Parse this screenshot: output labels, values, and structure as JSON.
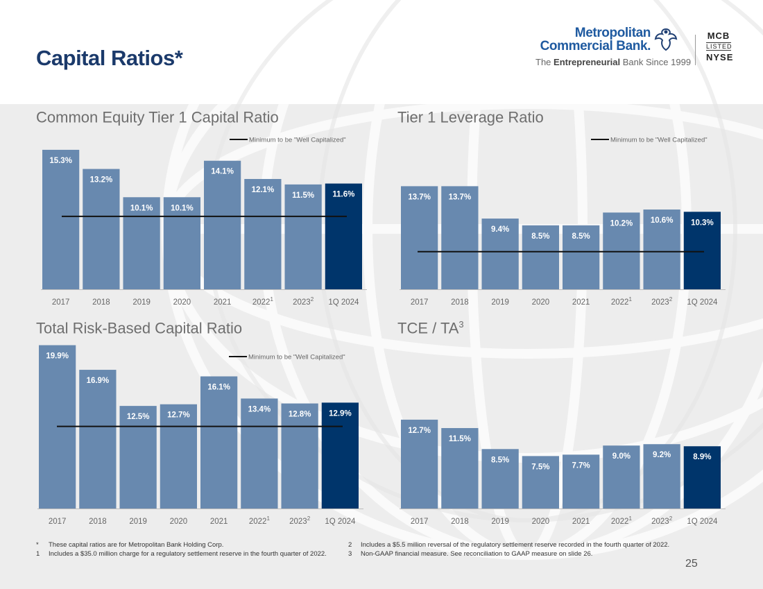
{
  "page": {
    "title": "Capital Ratios*",
    "page_number": "25"
  },
  "logo": {
    "line1": "Metropolitan",
    "line2": "Commercial Bank.",
    "tagline_pre": "The",
    "tagline_bold": "Entrepreneurial",
    "tagline_post": "Bank Since 1999",
    "ticker_code": "MCB",
    "ticker_listed": "LISTED",
    "ticker_exchange": "NYSE"
  },
  "colors": {
    "bar": "#6889af",
    "bar_highlight": "#00356b",
    "title": "#1b3a6b",
    "min_line": "#111111"
  },
  "chart_data": [
    {
      "type": "bar",
      "title": "Common Equity Tier 1 Capital Ratio",
      "title_sup": "",
      "categories": [
        "2017",
        "2018",
        "2019",
        "2020",
        "2021",
        "2022",
        "2023",
        "1Q 2024"
      ],
      "category_sups": [
        "",
        "",
        "",
        "",
        "",
        "1",
        "2",
        ""
      ],
      "values": [
        15.3,
        13.2,
        10.1,
        10.1,
        14.1,
        12.1,
        11.5,
        11.6
      ],
      "labels": [
        "15.3%",
        "13.2%",
        "10.1%",
        "10.1%",
        "14.1%",
        "12.1%",
        "11.5%",
        "11.6%"
      ],
      "highlight_index": 7,
      "min_line_value": 8.0,
      "legend": "Minimum to be \"Well Capitalized\"",
      "ylim": [
        0,
        15.6
      ]
    },
    {
      "type": "bar",
      "title": "Tier 1 Leverage Ratio",
      "title_sup": "",
      "categories": [
        "2017",
        "2018",
        "2019",
        "2020",
        "2021",
        "2022",
        "2023",
        "1Q 2024"
      ],
      "category_sups": [
        "",
        "",
        "",
        "",
        "",
        "1",
        "2",
        ""
      ],
      "values": [
        13.7,
        13.7,
        9.4,
        8.5,
        8.5,
        10.2,
        10.6,
        10.3
      ],
      "labels": [
        "13.7%",
        "13.7%",
        "9.4%",
        "8.5%",
        "8.5%",
        "10.2%",
        "10.6%",
        "10.3%"
      ],
      "highlight_index": 7,
      "min_line_value": 5.0,
      "legend": "Minimum to be \"Well Capitalized\"",
      "ylim": [
        0,
        18.9
      ]
    },
    {
      "type": "bar",
      "title": "Total Risk-Based Capital Ratio",
      "title_sup": "",
      "categories": [
        "2017",
        "2018",
        "2019",
        "2020",
        "2021",
        "2022",
        "2023",
        "1Q 2024"
      ],
      "category_sups": [
        "",
        "",
        "",
        "",
        "",
        "1",
        "2",
        ""
      ],
      "values": [
        19.9,
        16.9,
        12.5,
        12.7,
        16.1,
        13.4,
        12.8,
        12.9
      ],
      "labels": [
        "19.9%",
        "16.9%",
        "12.5%",
        "12.7%",
        "16.1%",
        "13.4%",
        "12.8%",
        "12.9%"
      ],
      "highlight_index": 7,
      "min_line_value": 10.0,
      "legend": "Minimum to be \"Well Capitalized\"",
      "ylim": [
        0,
        20.2
      ]
    },
    {
      "type": "bar",
      "title": "TCE / TA",
      "title_sup": "3",
      "categories": [
        "2017",
        "2018",
        "2019",
        "2020",
        "2021",
        "2022",
        "2023",
        "1Q 2024"
      ],
      "category_sups": [
        "",
        "",
        "",
        "",
        "",
        "1",
        "2",
        ""
      ],
      "values": [
        12.7,
        11.5,
        8.5,
        7.5,
        7.7,
        9.0,
        9.2,
        8.9
      ],
      "labels": [
        "12.7%",
        "11.5%",
        "8.5%",
        "7.5%",
        "7.7%",
        "9.0%",
        "9.2%",
        "8.9%"
      ],
      "highlight_index": 7,
      "min_line_value": null,
      "legend": "",
      "ylim": [
        0,
        23.7
      ]
    }
  ],
  "footnotes": {
    "left": [
      {
        "marker": "*",
        "text": "These capital ratios are for Metropolitan Bank Holding Corp."
      },
      {
        "marker": "1",
        "text": "Includes a $35.0 million charge for a regulatory settlement reserve in the fourth quarter of 2022."
      }
    ],
    "right": [
      {
        "marker": "2",
        "text": "Includes a $5.5 million reversal of the regulatory settlement reserve recorded in the fourth quarter of 2022."
      },
      {
        "marker": "3",
        "text": "Non-GAAP financial measure. See reconciliation to GAAP measure on slide 26."
      }
    ]
  }
}
